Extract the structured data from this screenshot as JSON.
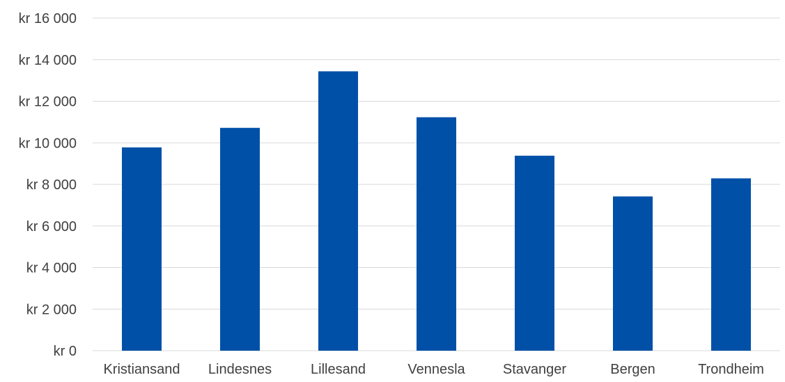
{
  "chart_data": {
    "type": "bar",
    "title": "",
    "xlabel": "",
    "ylabel": "",
    "categories": [
      "Kristiansand",
      "Lindesnes",
      "Lillesand",
      "Vennesla",
      "Stavanger",
      "Bergen",
      "Trondheim"
    ],
    "values": [
      9780,
      10720,
      13440,
      11230,
      9380,
      7420,
      8290
    ],
    "ylim": [
      0,
      16000
    ],
    "y_ticks": [
      0,
      2000,
      4000,
      6000,
      8000,
      10000,
      12000,
      14000,
      16000
    ],
    "y_tick_labels": [
      "kr  0",
      "kr 2 000",
      "kr 4 000",
      "kr 6 000",
      "kr 8 000",
      "kr 10 000",
      "kr 12 000",
      "kr 14 000",
      "kr 16 000"
    ],
    "grid": true,
    "legend": "none",
    "colors": {
      "bar": "#0050a8",
      "grid": "#d9d9d9",
      "text": "#404040"
    }
  }
}
